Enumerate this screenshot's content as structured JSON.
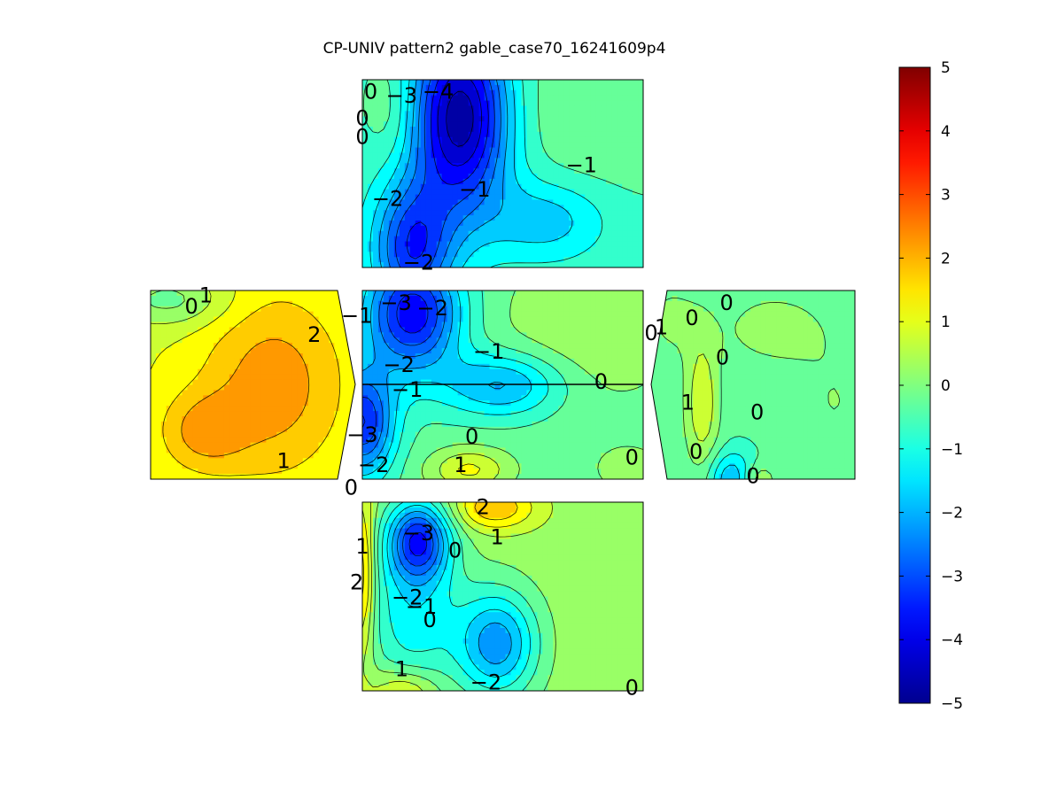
{
  "chart_data": {
    "type": "heatmap",
    "title": "CP-UNIV pattern2 gable_case70_16241609p4",
    "colorbar": {
      "range": [
        -5,
        5
      ],
      "ticks": [
        5,
        4,
        3,
        2,
        1,
        0,
        -1,
        -2,
        -3,
        -4,
        -5
      ],
      "tick_labels": [
        "5",
        "4",
        "3",
        "2",
        "1",
        "0",
        "−1",
        "−2",
        "−3",
        "−4",
        "−5"
      ],
      "colormap": "jet",
      "colors": [
        "#00008f",
        "#0000ff",
        "#00ffff",
        "#ffff00",
        "#ff0000",
        "#800000"
      ]
    },
    "panels": [
      {
        "id": "top",
        "background": -0.6,
        "blobs": [
          {
            "cx": 0.35,
            "cy": 0.2,
            "sx": 0.12,
            "sy": 0.35,
            "a": -4.3
          },
          {
            "cx": 0.18,
            "cy": 0.9,
            "sx": 0.1,
            "sy": 0.25,
            "a": -2.8
          },
          {
            "cx": 0.85,
            "cy": 0.15,
            "sx": 0.25,
            "sy": 0.3,
            "a": 0.6
          },
          {
            "cx": 0.1,
            "cy": 0.15,
            "sx": 0.06,
            "sy": 0.2,
            "a": 0.6
          },
          {
            "cx": 0.65,
            "cy": 0.75,
            "sx": 0.15,
            "sy": 0.15,
            "a": -1.2
          }
        ],
        "labels": [
          {
            "text": "0",
            "u": 0.03,
            "v": 0.06
          },
          {
            "text": "−3",
            "u": 0.14,
            "v": 0.08
          },
          {
            "text": "−4",
            "u": 0.27,
            "v": 0.06
          },
          {
            "text": "0",
            "u": 0.0,
            "v": 0.2
          },
          {
            "text": "0",
            "u": 0.0,
            "v": 0.3
          },
          {
            "text": "−1",
            "u": 0.78,
            "v": 0.45
          },
          {
            "text": "−1",
            "u": 0.4,
            "v": 0.58
          },
          {
            "text": "−2",
            "u": 0.09,
            "v": 0.63
          },
          {
            "text": "−2",
            "u": 0.2,
            "v": 0.97
          }
        ]
      },
      {
        "id": "center",
        "background": -0.3,
        "blobs": [
          {
            "cx": 0.18,
            "cy": 0.12,
            "sx": 0.12,
            "sy": 0.22,
            "a": -3.6
          },
          {
            "cx": 0.5,
            "cy": 0.5,
            "sx": 0.15,
            "sy": 0.12,
            "a": -1.9
          },
          {
            "cx": 0.0,
            "cy": 0.7,
            "sx": 0.08,
            "sy": 0.2,
            "a": -3.2
          },
          {
            "cx": 0.38,
            "cy": 0.95,
            "sx": 0.1,
            "sy": 0.08,
            "a": 1.4
          },
          {
            "cx": 0.8,
            "cy": 0.2,
            "sx": 0.25,
            "sy": 0.3,
            "a": 0.7
          },
          {
            "cx": 0.95,
            "cy": 0.95,
            "sx": 0.1,
            "sy": 0.1,
            "a": 0.5
          }
        ],
        "labels": [
          {
            "text": "−3",
            "u": 0.12,
            "v": 0.06
          },
          {
            "text": "−2",
            "u": 0.25,
            "v": 0.09
          },
          {
            "text": "−1",
            "u": 0.45,
            "v": 0.32
          },
          {
            "text": "−2",
            "u": 0.13,
            "v": 0.39
          },
          {
            "text": "−1",
            "u": 0.16,
            "v": 0.52
          },
          {
            "text": "0",
            "u": 0.85,
            "v": 0.48
          },
          {
            "text": "−3",
            "u": 0.0,
            "v": 0.76
          },
          {
            "text": "0",
            "u": 0.39,
            "v": 0.77
          },
          {
            "text": "−2",
            "u": 0.04,
            "v": 0.92
          },
          {
            "text": "1",
            "u": 0.35,
            "v": 0.92
          },
          {
            "text": "0",
            "u": 0.96,
            "v": 0.88
          },
          {
            "text": "−1",
            "u": -0.02,
            "v": 0.13
          }
        ]
      },
      {
        "id": "left",
        "background": 0.9,
        "blobs": [
          {
            "cx": 0.6,
            "cy": 0.5,
            "sx": 0.25,
            "sy": 0.35,
            "a": 1.4
          },
          {
            "cx": 0.25,
            "cy": 0.75,
            "sx": 0.15,
            "sy": 0.15,
            "a": 1.1
          },
          {
            "cx": 0.1,
            "cy": 0.05,
            "sx": 0.2,
            "sy": 0.1,
            "a": -1.1
          }
        ],
        "labels": [
          {
            "text": "0",
            "u": 0.2,
            "v": 0.08
          },
          {
            "text": "1",
            "u": 0.27,
            "v": 0.02
          },
          {
            "text": "2",
            "u": 0.8,
            "v": 0.23
          },
          {
            "text": "1",
            "u": 0.65,
            "v": 0.9
          },
          {
            "text": "0",
            "u": 0.98,
            "v": 1.04
          }
        ]
      },
      {
        "id": "right",
        "background": -0.4,
        "blobs": [
          {
            "cx": 0.25,
            "cy": 0.6,
            "sx": 0.06,
            "sy": 0.25,
            "a": 1.3
          },
          {
            "cx": 0.4,
            "cy": 1.0,
            "sx": 0.08,
            "sy": 0.1,
            "a": -1.6
          },
          {
            "cx": 0.6,
            "cy": 0.2,
            "sx": 0.2,
            "sy": 0.15,
            "a": 0.6
          },
          {
            "cx": 0.1,
            "cy": 0.15,
            "sx": 0.1,
            "sy": 0.15,
            "a": 0.5
          },
          {
            "cx": 0.52,
            "cy": 1.0,
            "sx": 0.06,
            "sy": 0.06,
            "a": 1.0
          },
          {
            "cx": 0.9,
            "cy": 0.6,
            "sx": 0.15,
            "sy": 0.25,
            "a": 0.4
          }
        ],
        "labels": [
          {
            "text": "0",
            "u": 0.0,
            "v": 0.22
          },
          {
            "text": "1",
            "u": 0.05,
            "v": 0.19
          },
          {
            "text": "0",
            "u": 0.2,
            "v": 0.14
          },
          {
            "text": "0",
            "u": 0.37,
            "v": 0.06
          },
          {
            "text": "0",
            "u": 0.35,
            "v": 0.35
          },
          {
            "text": "1",
            "u": 0.18,
            "v": 0.59
          },
          {
            "text": "0",
            "u": 0.52,
            "v": 0.64
          },
          {
            "text": "0",
            "u": 0.22,
            "v": 0.85
          },
          {
            "text": "0",
            "u": 0.5,
            "v": 0.98
          }
        ]
      },
      {
        "id": "bottom",
        "background": 0.3,
        "blobs": [
          {
            "cx": 0.2,
            "cy": 0.2,
            "sx": 0.08,
            "sy": 0.15,
            "a": -3.4
          },
          {
            "cx": 0.48,
            "cy": 0.75,
            "sx": 0.1,
            "sy": 0.2,
            "a": -2.6
          },
          {
            "cx": 0.47,
            "cy": 0.03,
            "sx": 0.1,
            "sy": 0.08,
            "a": 1.7
          },
          {
            "cx": 0.0,
            "cy": 0.4,
            "sx": 0.03,
            "sy": 0.3,
            "a": 1.8
          },
          {
            "cx": 0.15,
            "cy": 1.0,
            "sx": 0.08,
            "sy": 0.08,
            "a": 1.2
          },
          {
            "cx": 0.18,
            "cy": 0.6,
            "sx": 0.12,
            "sy": 0.3,
            "a": -1.6
          }
        ],
        "labels": [
          {
            "text": "2",
            "u": 0.43,
            "v": 0.02
          },
          {
            "text": "−3",
            "u": 0.2,
            "v": 0.16
          },
          {
            "text": "1",
            "u": 0.48,
            "v": 0.18
          },
          {
            "text": "0",
            "u": 0.33,
            "v": 0.25
          },
          {
            "text": "1",
            "u": 0.0,
            "v": 0.23
          },
          {
            "text": "2",
            "u": -0.02,
            "v": 0.42
          },
          {
            "text": "−2",
            "u": 0.16,
            "v": 0.5
          },
          {
            "text": "−1",
            "u": 0.21,
            "v": 0.55
          },
          {
            "text": "0",
            "u": 0.24,
            "v": 0.62
          },
          {
            "text": "1",
            "u": 0.14,
            "v": 0.88
          },
          {
            "text": "−2",
            "u": 0.44,
            "v": 0.95
          },
          {
            "text": "0",
            "u": 0.96,
            "v": 0.98
          }
        ]
      }
    ]
  }
}
